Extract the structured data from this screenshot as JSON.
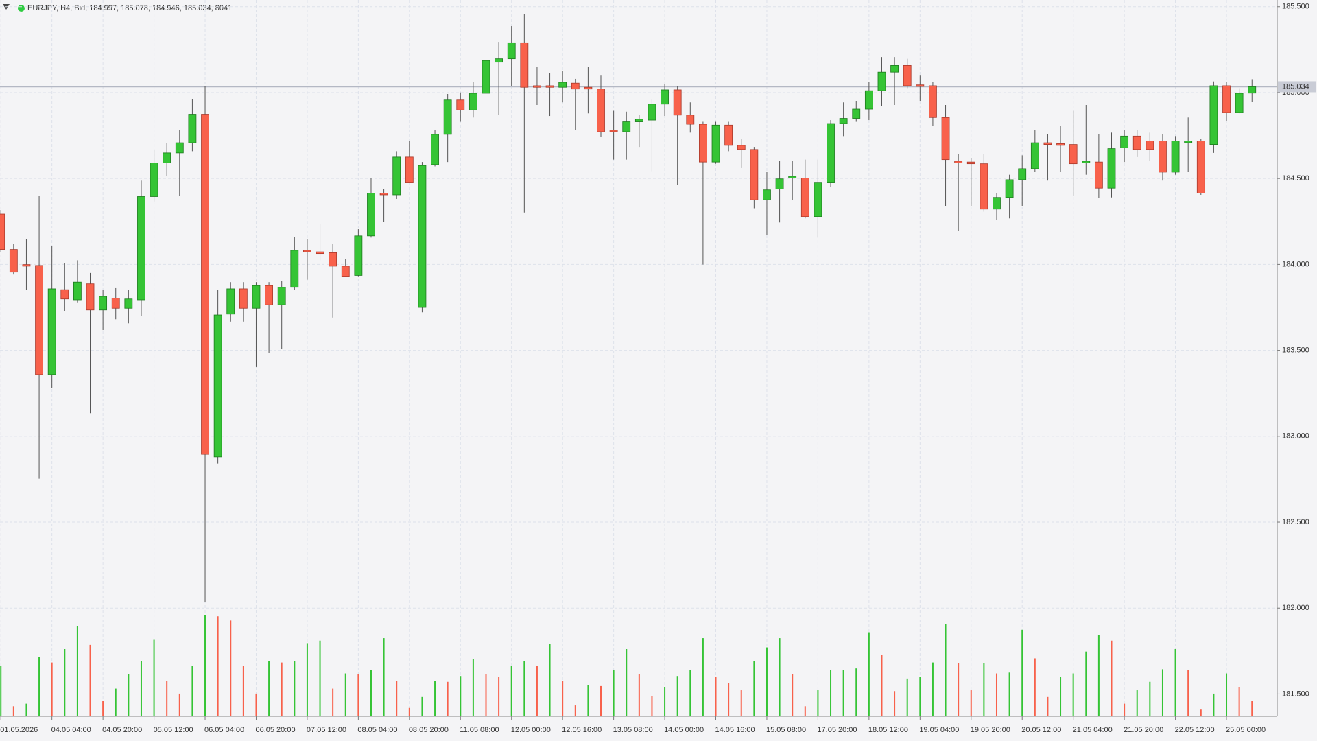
{
  "chart_data": {
    "type": "candlestick",
    "title": "EURJPY, H4, Bid, 184.997, 185.078, 184.946, 185.034, 8041",
    "categories": [
      "01.05.2026",
      null,
      null,
      null,
      "04.05 04:00",
      null,
      null,
      null,
      "04.05 20:00",
      null,
      null,
      null,
      "05.05 12:00",
      null,
      null,
      null,
      "06.05 04:00",
      null,
      null,
      null,
      "06.05 20:00",
      null,
      null,
      null,
      "07.05 12:00",
      null,
      null,
      null,
      "08.05 04:00",
      null,
      null,
      null,
      "08.05 20:00",
      null,
      null,
      null,
      "11.05 08:00",
      null,
      null,
      null,
      "12.05 00:00",
      null,
      null,
      null,
      "12.05 16:00",
      null,
      null,
      null,
      "13.05 08:00",
      null,
      null,
      null,
      "14.05 00:00",
      null,
      null,
      null,
      "14.05 16:00",
      null,
      null,
      null,
      "15.05 08:00",
      null,
      null,
      null,
      "17.05 20:00",
      null,
      null,
      null,
      "18.05 12:00",
      null,
      null,
      null,
      "19.05 04:00",
      null,
      null,
      null,
      "19.05 20:00",
      null,
      null,
      null,
      "20.05 12:00",
      null,
      null,
      null,
      "21.05 04:00",
      null,
      null,
      null,
      "21.05 20:00",
      null,
      null,
      null,
      "22.05 12:00",
      null,
      null,
      null,
      "25.05 00:00",
      null,
      null
    ],
    "open": [
      184.293,
      184.087,
      183.999,
      183.994,
      183.359,
      183.853,
      183.794,
      183.887,
      183.735,
      183.804,
      183.745,
      183.794,
      184.395,
      184.591,
      184.649,
      184.708,
      184.874,
      182.88,
      183.711,
      183.858,
      183.745,
      183.877,
      183.765,
      183.867,
      184.082,
      184.073,
      184.068,
      183.99,
      183.936,
      184.166,
      184.415,
      184.405,
      184.625,
      183.75,
      184.581,
      184.757,
      184.957,
      184.899,
      184.996,
      185.177,
      185.197,
      185.29,
      185.04,
      185.04,
      185.031,
      185.055,
      185.031,
      185.021,
      184.781,
      184.772,
      184.83,
      184.84,
      184.933,
      185.016,
      184.869,
      184.816,
      184.596,
      184.811,
      184.693,
      184.669,
      184.376,
      184.439,
      184.503,
      184.503,
      184.278,
      184.478,
      184.82,
      184.85,
      184.904,
      185.011,
      185.119,
      185.158,
      185.045,
      185.04,
      184.855,
      184.601,
      184.596,
      184.586,
      184.322,
      184.39,
      184.493,
      184.557,
      184.708,
      184.703,
      184.698,
      184.591,
      184.596,
      184.444,
      184.679,
      184.747,
      184.718,
      184.718,
      184.537,
      184.708,
      184.718,
      184.698,
      185.04,
      184.884,
      184.997
    ],
    "high": [
      184.317,
      184.121,
      184.146,
      184.4,
      184.107,
      184.009,
      184.024,
      183.95,
      183.853,
      183.862,
      183.853,
      184.488,
      184.669,
      184.708,
      184.781,
      184.962,
      185.036,
      183.853,
      183.897,
      183.897,
      183.897,
      183.897,
      183.902,
      184.161,
      184.146,
      184.234,
      184.121,
      184.033,
      184.205,
      184.503,
      184.439,
      184.659,
      184.718,
      184.596,
      184.781,
      184.992,
      185.001,
      185.06,
      185.216,
      185.295,
      185.387,
      185.456,
      185.148,
      185.114,
      185.124,
      185.08,
      185.148,
      185.099,
      184.894,
      184.889,
      184.869,
      184.962,
      185.05,
      185.036,
      184.943,
      184.83,
      184.83,
      184.83,
      184.732,
      184.684,
      184.537,
      184.601,
      184.601,
      184.61,
      184.61,
      184.84,
      184.943,
      184.952,
      185.06,
      185.207,
      185.207,
      185.197,
      185.099,
      185.06,
      184.928,
      184.644,
      184.62,
      184.644,
      184.415,
      184.522,
      184.635,
      184.781,
      184.757,
      184.806,
      184.894,
      184.928,
      184.757,
      184.767,
      184.781,
      184.781,
      184.767,
      184.757,
      184.747,
      184.855,
      184.732,
      185.065,
      185.06,
      185.026,
      185.078
    ],
    "low": [
      184.073,
      183.941,
      183.853,
      182.753,
      183.281,
      183.73,
      183.779,
      183.134,
      183.618,
      183.681,
      183.657,
      183.701,
      184.366,
      184.513,
      184.4,
      184.659,
      182.034,
      182.841,
      183.667,
      183.667,
      183.403,
      183.486,
      183.51,
      183.853,
      183.911,
      184.024,
      183.691,
      183.926,
      183.931,
      184.156,
      184.249,
      184.381,
      184.473,
      183.721,
      184.571,
      184.596,
      184.83,
      184.855,
      184.972,
      184.869,
      185.036,
      184.302,
      184.928,
      184.864,
      184.943,
      184.781,
      184.879,
      184.742,
      184.61,
      184.61,
      184.684,
      184.542,
      184.864,
      184.464,
      184.767,
      183.999,
      184.586,
      184.659,
      184.561,
      184.327,
      184.17,
      184.244,
      184.376,
      184.268,
      184.156,
      184.449,
      184.747,
      184.83,
      184.84,
      184.923,
      184.928,
      185.026,
      184.952,
      184.806,
      184.341,
      184.195,
      184.341,
      184.307,
      184.258,
      184.268,
      184.341,
      184.537,
      184.488,
      184.537,
      184.4,
      184.522,
      184.385,
      184.39,
      184.596,
      184.625,
      184.601,
      184.488,
      184.522,
      184.537,
      184.405,
      184.649,
      184.835,
      184.879,
      184.946
    ],
    "close": [
      184.087,
      183.955,
      183.99,
      183.359,
      183.858,
      183.799,
      183.897,
      183.735,
      183.814,
      183.745,
      183.799,
      184.395,
      184.591,
      184.649,
      184.708,
      184.874,
      182.895,
      183.706,
      183.858,
      183.745,
      183.877,
      183.765,
      183.867,
      184.082,
      184.073,
      184.063,
      183.99,
      183.931,
      184.166,
      184.415,
      184.405,
      184.625,
      184.478,
      184.576,
      184.757,
      184.957,
      184.899,
      184.996,
      185.187,
      185.197,
      185.29,
      185.031,
      185.031,
      185.031,
      185.06,
      185.021,
      185.021,
      184.772,
      184.772,
      184.83,
      184.845,
      184.933,
      185.016,
      184.869,
      184.816,
      184.596,
      184.811,
      184.693,
      184.669,
      184.376,
      184.434,
      184.498,
      184.513,
      184.278,
      184.478,
      184.82,
      184.85,
      184.904,
      185.011,
      185.119,
      185.158,
      185.04,
      185.036,
      184.855,
      184.61,
      184.591,
      184.586,
      184.322,
      184.39,
      184.493,
      184.557,
      184.708,
      184.698,
      184.693,
      184.586,
      184.601,
      184.444,
      184.674,
      184.747,
      184.669,
      184.669,
      184.537,
      184.718,
      184.718,
      184.415,
      185.04,
      184.884,
      184.996,
      185.034
    ],
    "volume": [
      26820,
      5364,
      6705,
      31737,
      28608,
      35760,
      47829,
      37995,
      8046,
      14751,
      22350,
      29502,
      40677,
      18774,
      12069,
      26820,
      53640,
      53193,
      50958,
      26820,
      12069,
      29502,
      28608,
      29502,
      38889,
      40230,
      14751,
      22797,
      22350,
      24585,
      41571,
      18774,
      4470,
      10281,
      18774,
      18327,
      21456,
      30396,
      22350,
      21009,
      26820,
      29502,
      26820,
      38442,
      18774,
      5811,
      16539,
      16092,
      24585,
      35760,
      22350,
      10728,
      15645,
      21456,
      24585,
      41571,
      21009,
      17880,
      13857,
      29502,
      36654,
      41571,
      22350,
      5364,
      13857,
      24585,
      24585,
      25479,
      44700,
      32631,
      13410,
      20115,
      21009,
      28608,
      49170,
      28161,
      13857,
      28161,
      22797,
      23244,
      46041,
      30843,
      10281,
      21009,
      22797,
      34419,
      43359,
      40230,
      6705,
      13857,
      18327,
      25032,
      35760,
      24585,
      3576,
      12069,
      22797,
      15645,
      8041
    ],
    "up_color": "#35c435",
    "down_color": "#f8614b",
    "ylim": [
      181.37,
      185.539
    ],
    "yticks": [
      {
        "value": 185.5,
        "label": "185.500"
      },
      {
        "value": 185.0,
        "label": "185.000"
      },
      {
        "value": 184.5,
        "label": "184.500"
      },
      {
        "value": 184.0,
        "label": "184.000"
      },
      {
        "value": 183.5,
        "label": "183.500"
      },
      {
        "value": 183.0,
        "label": "183.000"
      },
      {
        "value": 182.5,
        "label": "182.500"
      },
      {
        "value": 182.0,
        "label": "182.000"
      },
      {
        "value": 181.5,
        "label": "181.500"
      }
    ],
    "current_price": 185.034,
    "grid": true
  }
}
